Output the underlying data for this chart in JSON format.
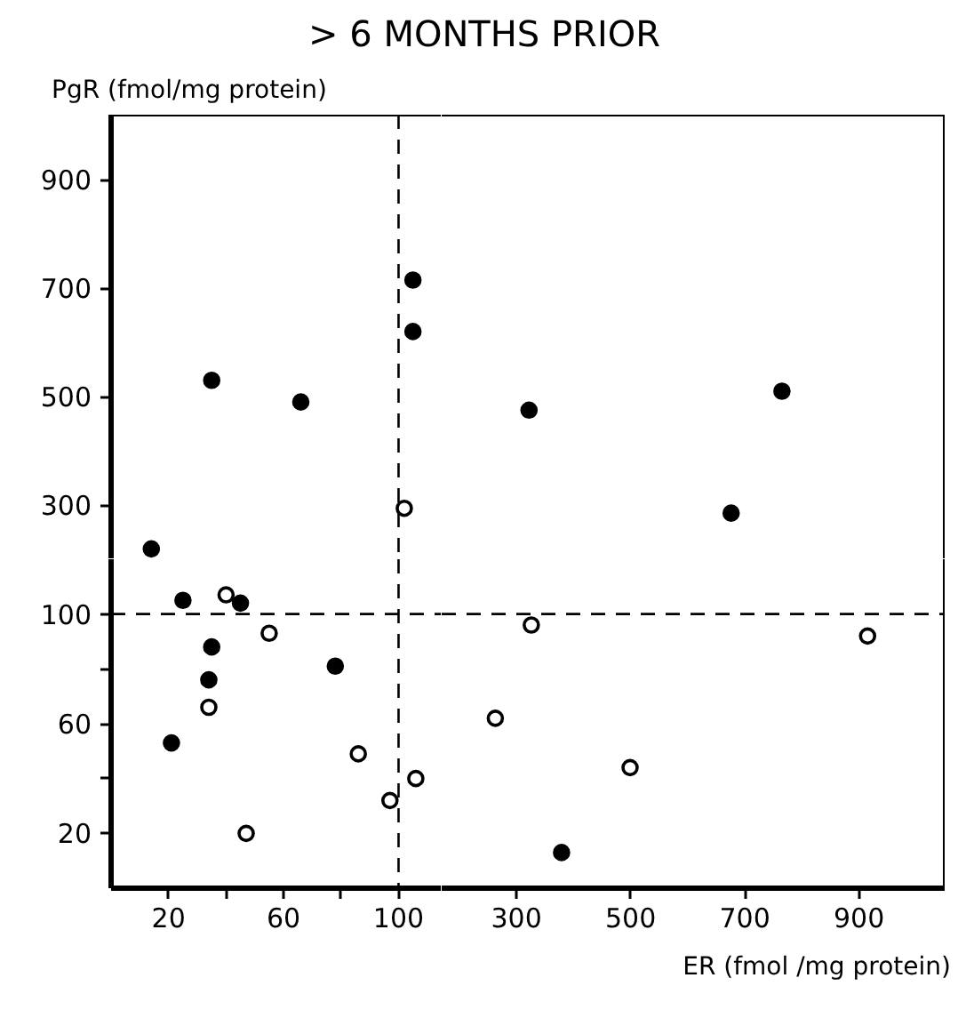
{
  "chart_data": [
    {
      "type": "scatter",
      "title": "> 6 MONTHS PRIOR",
      "ylabel": "PgR (fmol/mg protein)",
      "xlim": [
        0,
        115
      ],
      "ylim": [
        200,
        1020
      ],
      "xticks": [
        20,
        60,
        100
      ],
      "yticks": [
        300,
        500,
        700,
        900
      ],
      "tick_labels": "y",
      "marker": "circle",
      "grid": false,
      "ref_lines": [
        {
          "axis": "x",
          "value": 100,
          "line_style": "dashed"
        }
      ],
      "series": [
        {
          "color": "#000000",
          "x": [
            105,
            105,
            35,
            66,
            14
          ],
          "values": [
            715,
            620,
            530,
            490,
            219
          ]
        },
        {
          "color": "#ffffff",
          "x": [
            102
          ],
          "values": [
            294
          ]
        }
      ]
    },
    {
      "type": "scatter",
      "xlim": [
        169,
        1050
      ],
      "ylim": [
        200,
        1020
      ],
      "xticks": [
        300,
        500,
        700,
        900
      ],
      "yticks": [
        300,
        500,
        700,
        900
      ],
      "tick_labels": false,
      "marker": "circle",
      "grid": false,
      "series": [
        {
          "color": "#000000",
          "x": [
            322,
            765,
            676
          ],
          "values": [
            475,
            510,
            285
          ]
        }
      ]
    },
    {
      "type": "scatter",
      "xlim": [
        0,
        115
      ],
      "ylim": [
        0,
        120
      ],
      "xticks": [
        20,
        {
          "value": 40,
          "label": null
        },
        60,
        {
          "value": 80,
          "label": null
        },
        100
      ],
      "yticks": [
        20,
        {
          "value": 40,
          "label": null
        },
        60,
        {
          "value": 80,
          "label": null
        },
        100
      ],
      "marker": "circle",
      "grid": false,
      "ref_lines": [
        {
          "axis": "x",
          "value": 100,
          "line_style": "dashed"
        },
        {
          "axis": "y",
          "value": 100,
          "line_style": "dashed"
        }
      ],
      "series": [
        {
          "color": "#000000",
          "x": [
            25,
            45,
            35,
            34,
            21,
            78
          ],
          "values": [
            105,
            104,
            88,
            76,
            53,
            81
          ]
        },
        {
          "color": "#ffffff",
          "x": [
            40,
            55,
            34,
            86,
            47,
            97,
            106
          ],
          "values": [
            107,
            93,
            66,
            49,
            20,
            32,
            40
          ]
        }
      ]
    },
    {
      "type": "scatter",
      "xlabel": "ER (fmol /mg protein)",
      "xlim": [
        169,
        1050
      ],
      "ylim": [
        0,
        120
      ],
      "xticks": [
        300,
        500,
        700,
        900
      ],
      "yticks": [
        20,
        60,
        100
      ],
      "tick_labels": "x",
      "marker": "circle",
      "grid": false,
      "ref_lines": [
        {
          "axis": "y",
          "value": 100,
          "line_style": "dashed"
        }
      ],
      "series": [
        {
          "color": "#000000",
          "x": [
            379
          ],
          "values": [
            13
          ]
        },
        {
          "color": "#ffffff",
          "x": [
            326,
            915,
            263,
            499
          ],
          "values": [
            96,
            92,
            62,
            44
          ]
        }
      ]
    }
  ]
}
